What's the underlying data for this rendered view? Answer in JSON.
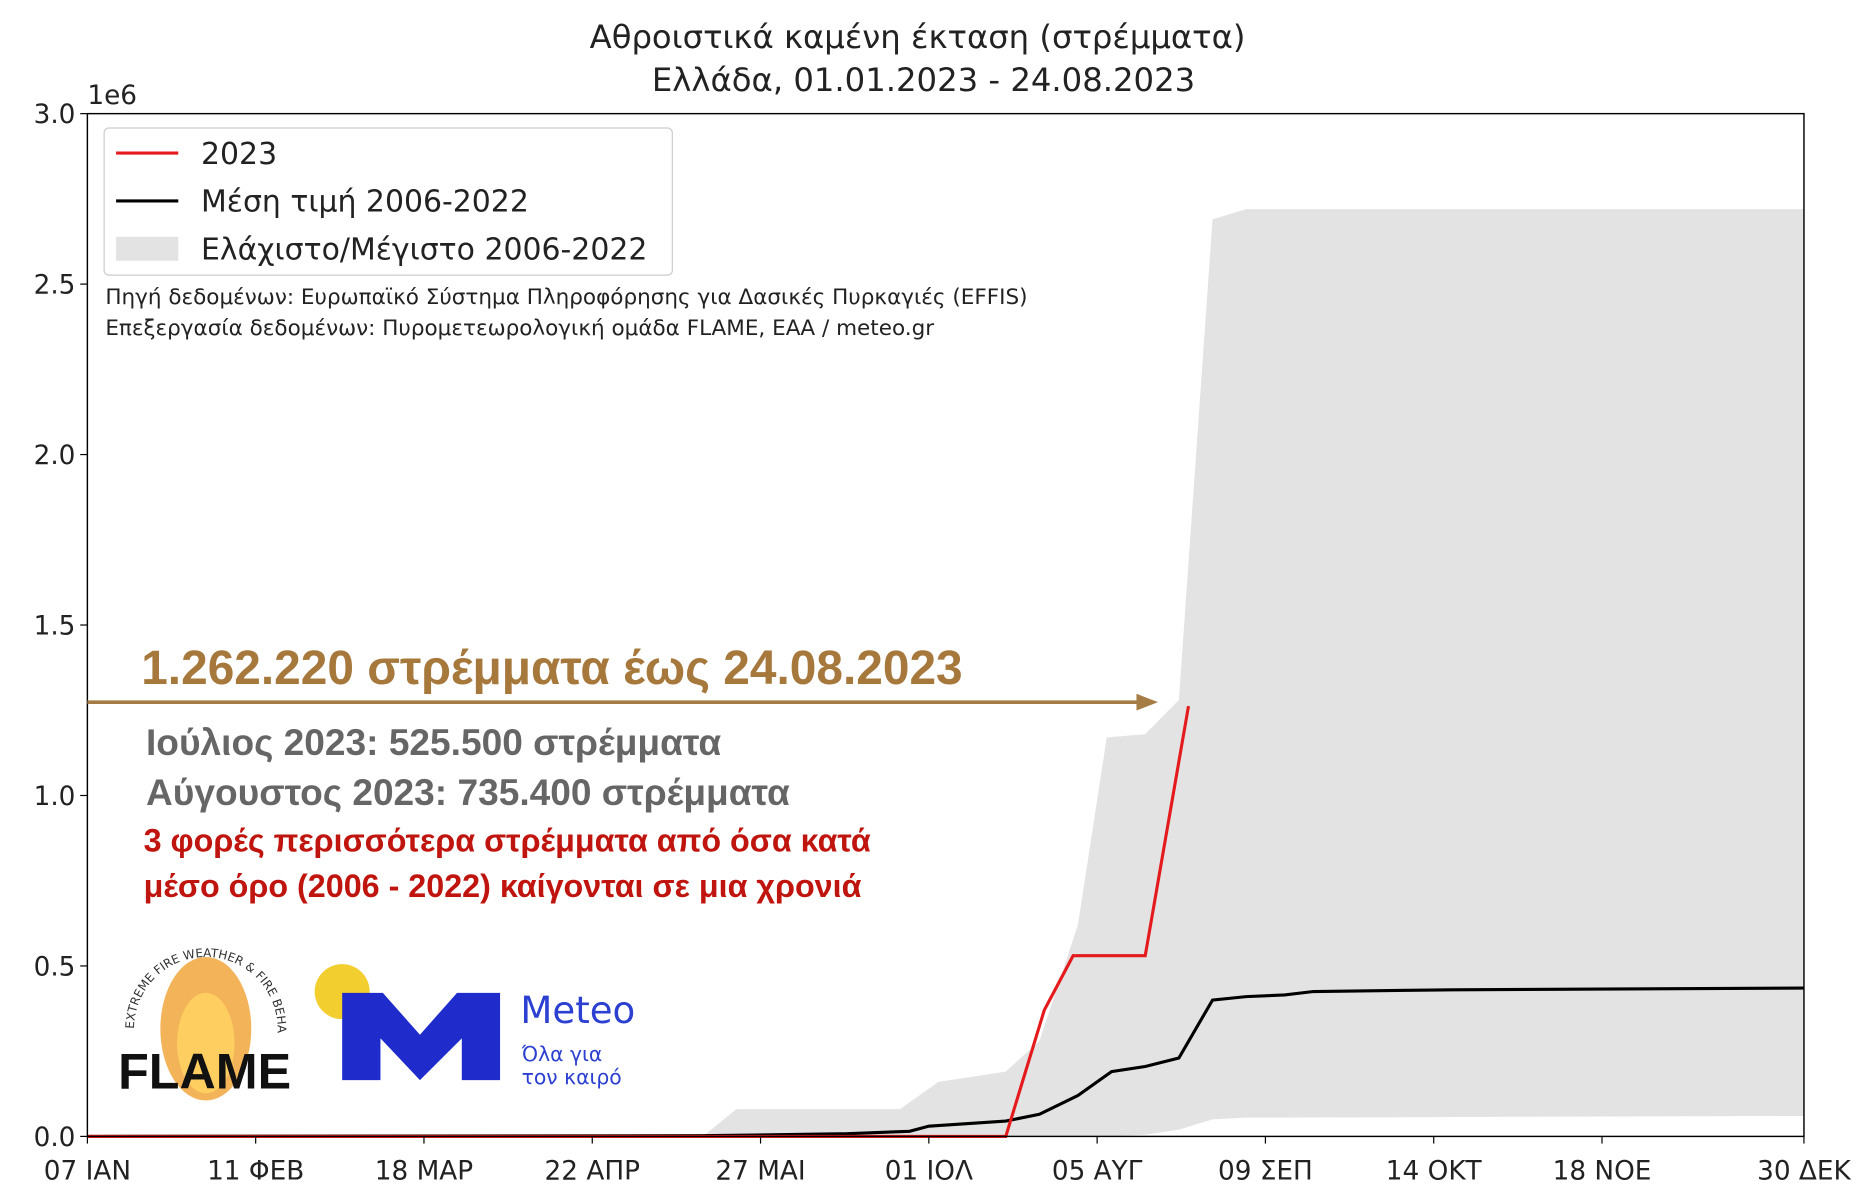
{
  "chart_data": {
    "type": "line",
    "title": "Αθροιστικά καμένη έκταση (στρέμματα)",
    "subtitle": "Ελλάδα, 01.01.2023 - 24.08.2023",
    "y_offset_label": "1e6",
    "xlim": [
      7,
      364
    ],
    "ylim": [
      0,
      3
    ],
    "xticks": [
      {
        "value": 7,
        "label": "07 ΙΑΝ"
      },
      {
        "value": 42,
        "label": "11 ΦΕΒ"
      },
      {
        "value": 77,
        "label": "18 ΜΑΡ"
      },
      {
        "value": 112,
        "label": "22 ΑΠΡ"
      },
      {
        "value": 147,
        "label": "27 ΜΑΙ"
      },
      {
        "value": 182,
        "label": "01 ΙΟΛ"
      },
      {
        "value": 217,
        "label": "05 ΑΥΓ"
      },
      {
        "value": 252,
        "label": "09 ΣΕΠ"
      },
      {
        "value": 287,
        "label": "14 ΟΚΤ"
      },
      {
        "value": 322,
        "label": "18 ΝΟΕ"
      },
      {
        "value": 364,
        "label": "30 ΔΕΚ"
      }
    ],
    "yticks": [
      {
        "value": 0,
        "label": "0.0"
      },
      0.5,
      {
        "value": 1,
        "label": "1.0"
      },
      1.5,
      {
        "value": 2,
        "label": "2.0"
      },
      2.5,
      {
        "value": 3,
        "label": "3.0"
      }
    ],
    "series": [
      {
        "name": "2023",
        "color": "#e41a1c",
        "x": [
          7,
          198,
          206,
          212,
          227,
          236
        ],
        "values": [
          0,
          0,
          0.37,
          0.53,
          0.53,
          1.26222
        ]
      },
      {
        "name": "Μέση τιμή 2006-2022",
        "color": "#000000",
        "x": [
          7,
          135,
          165,
          178,
          182,
          198,
          205,
          213,
          220,
          227,
          234,
          241,
          248,
          256,
          262,
          291,
          364
        ],
        "values": [
          0,
          0.002,
          0.008,
          0.015,
          0.03,
          0.045,
          0.065,
          0.12,
          0.19,
          0.205,
          0.23,
          0.4,
          0.41,
          0.415,
          0.425,
          0.43,
          0.435
        ]
      }
    ],
    "band": {
      "name": "Ελάχιστο/Μέγιστο 2006-2022",
      "color": "#e3e3e3",
      "x": [
        7,
        135,
        142,
        176,
        184,
        198,
        205,
        213,
        219,
        227,
        234,
        241,
        248,
        364
      ],
      "lower": [
        0,
        0,
        0,
        0,
        0,
        0,
        0,
        0,
        0,
        0.005,
        0.02,
        0.05,
        0.055,
        0.06
      ],
      "upper": [
        0,
        0,
        0.08,
        0.08,
        0.16,
        0.19,
        0.28,
        0.62,
        1.17,
        1.18,
        1.28,
        2.69,
        2.72,
        2.72
      ]
    },
    "legend_position": "upper left",
    "source_notes": [
      "Πηγή δεδομένων: Ευρωπαϊκό Σύστημα Πληροφόρησης για Δασικές Πυρκαγιές (EFFIS)",
      "Επεξεργασία δεδομένων: Πυρομετεωρολογική ομάδα FLAME, ΕΑΑ / meteo.gr"
    ],
    "annotations": {
      "headline": "1.262.220 στρέμματα έως 24.08.2023",
      "july": "Ιούλιος 2023: 525.500 στρέμματα",
      "august": "Αύγουστος 2023: 735.400 στρέμματα",
      "comparison": [
        "3 φορές περισσότερα στρέμματα από όσα κατά",
        "μέσο όρο (2006 - 2022) καίγονται σε μια χρονιά"
      ]
    },
    "logos": {
      "flame": "FLAME",
      "flame_ring": "EXTREME FIRE WEATHER & FIRE BEHAVIOUR",
      "meteo": "Meteo",
      "meteo_tagline": [
        "Όλα για",
        "τον καιρό"
      ]
    }
  }
}
